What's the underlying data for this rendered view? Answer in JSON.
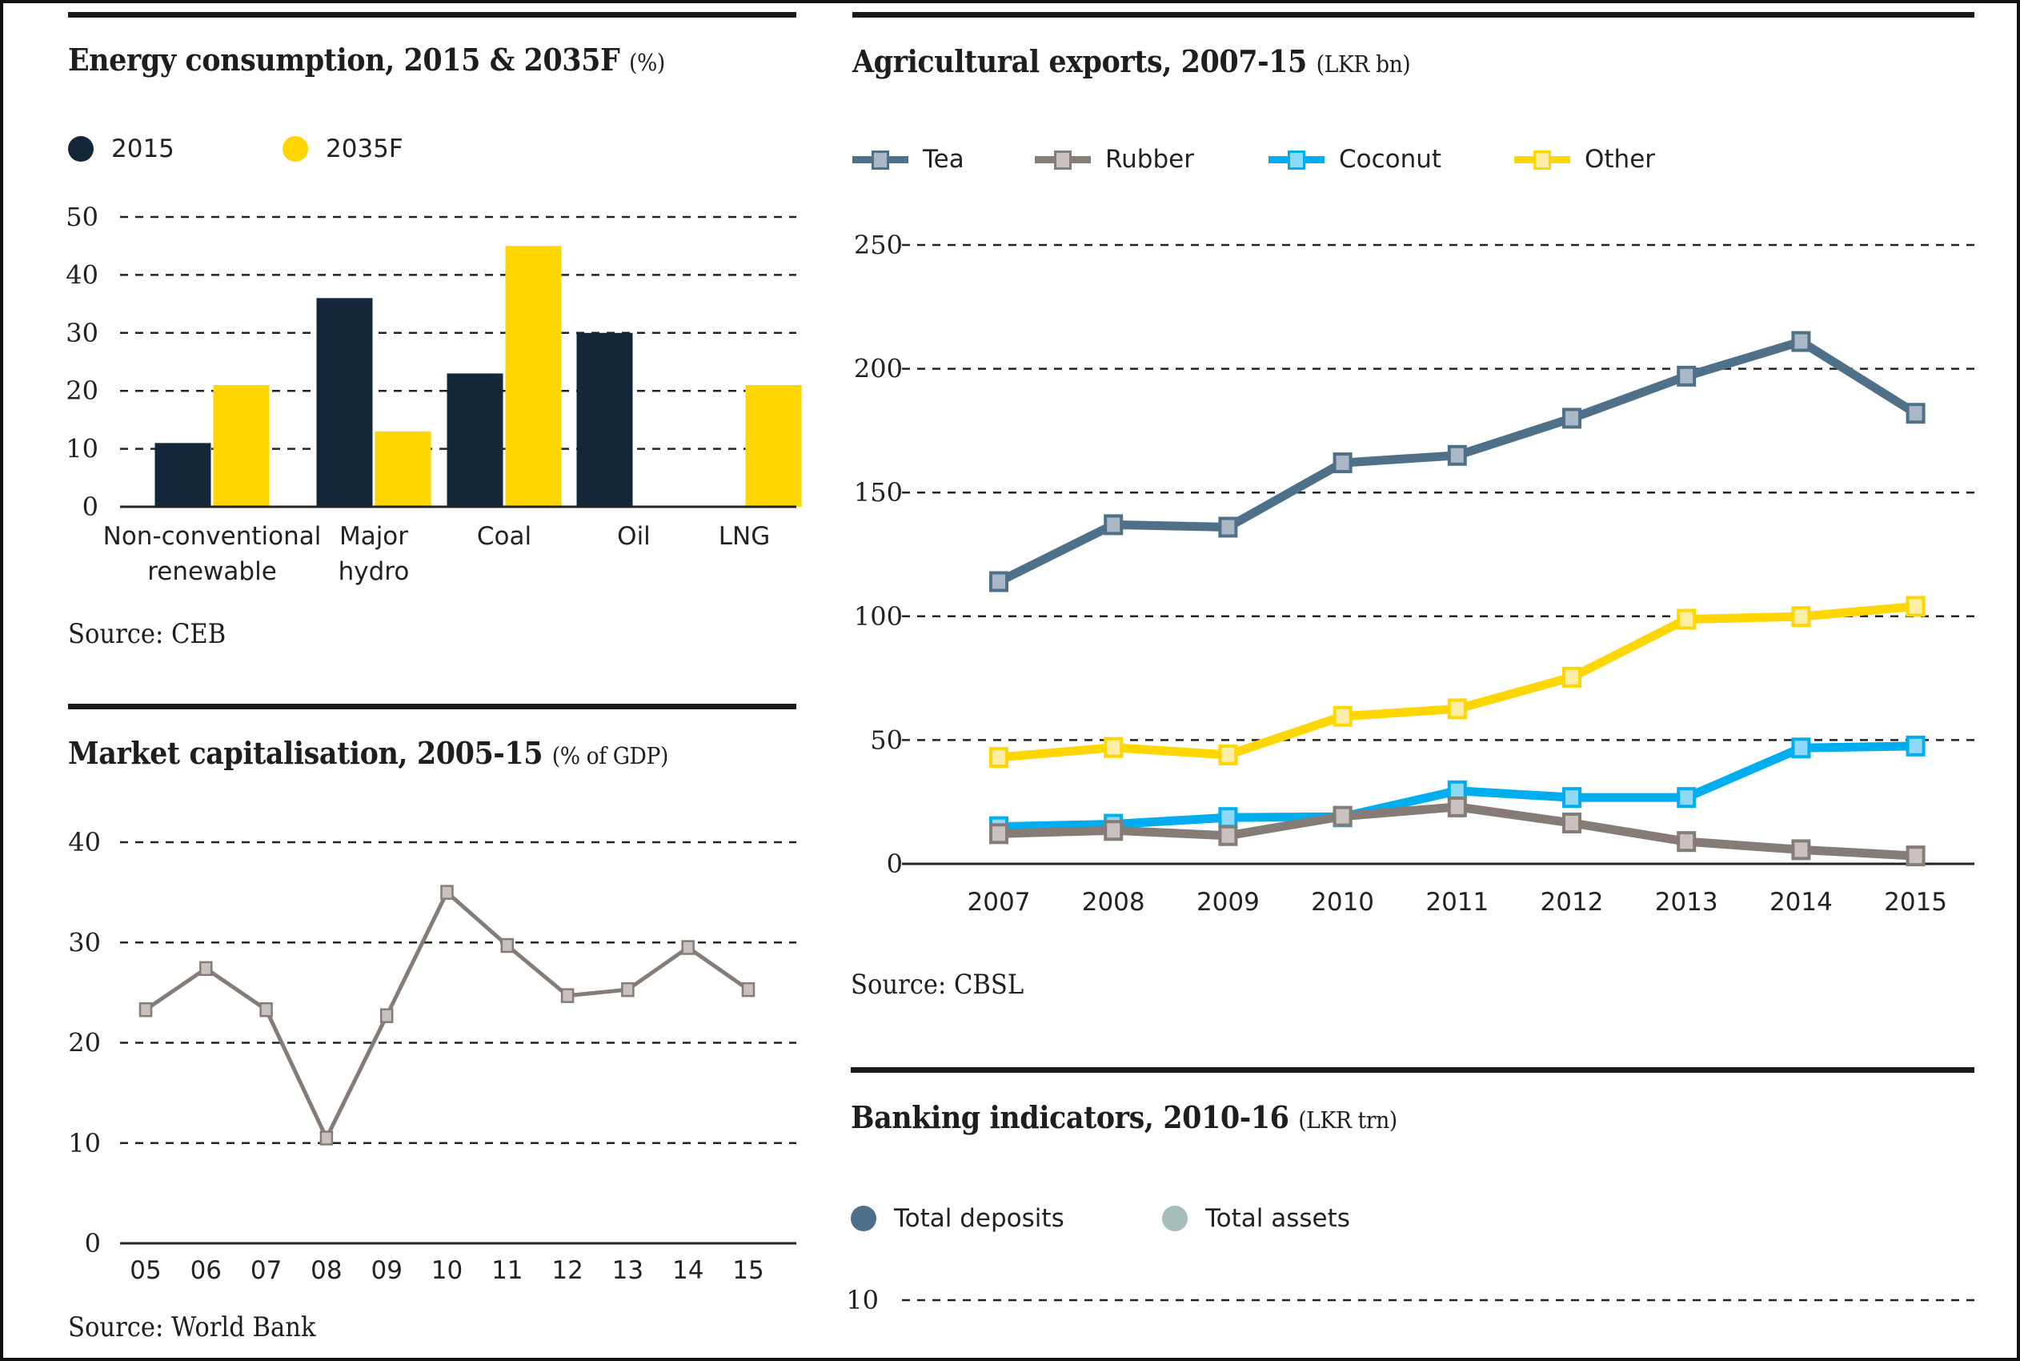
{
  "panels": {
    "energy": {
      "title": "Energy consumption, 2015 & 2035F",
      "unit": "(%)",
      "source": "Source: CEB",
      "legend": [
        {
          "label": "2015",
          "color": "#13263a"
        },
        {
          "label": "2035F",
          "color": "#ffd600"
        }
      ]
    },
    "market": {
      "title": "Market capitalisation, 2005-15",
      "unit": "(% of GDP)",
      "source": "Source: World Bank"
    },
    "agri": {
      "title": "Agricultural exports, 2007-15",
      "unit": "(LKR bn)",
      "source": "Source: CBSL",
      "legend": [
        {
          "label": "Tea",
          "color": "#4f7089",
          "fill": "#a9b7c7"
        },
        {
          "label": "Rubber",
          "color": "#857c78",
          "fill": "#c9c1be"
        },
        {
          "label": "Coconut",
          "color": "#00aeef",
          "fill": "#8dd9f6"
        },
        {
          "label": "Other",
          "color": "#ffd600",
          "fill": "#fdeea6"
        }
      ]
    },
    "banking": {
      "title": "Banking indicators, 2010-16",
      "unit": "(LKR trn)",
      "legend": [
        {
          "label": "Total deposits",
          "color": "#4d6f8a"
        },
        {
          "label": "Total assets",
          "color": "#a4bdba"
        }
      ],
      "ytick": "10"
    }
  },
  "chart_data": [
    {
      "type": "bar",
      "title": "Energy consumption, 2015 & 2035F (%)",
      "categories": [
        [
          "Non-conventional",
          "renewable"
        ],
        [
          "Major",
          "hydro"
        ],
        [
          "Coal"
        ],
        [
          "Oil"
        ],
        [
          "LNG"
        ]
      ],
      "series": [
        {
          "name": "2015",
          "values": [
            11,
            36,
            23,
            30,
            0
          ],
          "color": "#13263a"
        },
        {
          "name": "2035F",
          "values": [
            21,
            13,
            45,
            0,
            21
          ],
          "color": "#ffd600"
        }
      ],
      "yticks": [
        "0",
        "10",
        "20",
        "30",
        "40",
        "50"
      ],
      "ylim": [
        0,
        50
      ],
      "grid": true,
      "legend": "top-left",
      "xlabel": "",
      "ylabel": ""
    },
    {
      "type": "line",
      "title": "Market capitalisation, 2005-15 (% of GDP)",
      "x": [
        "05",
        "06",
        "07",
        "08",
        "09",
        "10",
        "11",
        "12",
        "13",
        "14",
        "15"
      ],
      "series": [
        {
          "name": "Market capitalisation",
          "values": [
            23.3,
            27.4,
            23.3,
            10.5,
            22.7,
            35.0,
            29.7,
            24.7,
            25.3,
            29.5,
            25.3
          ],
          "color": "#857c78",
          "fill": "#c9c1be"
        }
      ],
      "yticks": [
        "0",
        "10",
        "20",
        "30",
        "40"
      ],
      "ylim": [
        0,
        40
      ],
      "grid": true,
      "xlabel": "",
      "ylabel": ""
    },
    {
      "type": "line",
      "title": "Agricultural exports, 2007-15 (LKR bn)",
      "x": [
        "2007",
        "2008",
        "2009",
        "2010",
        "2011",
        "2012",
        "2013",
        "2014",
        "2015"
      ],
      "series": [
        {
          "name": "Tea",
          "values": [
            114,
            137,
            136,
            162,
            165,
            180,
            197,
            211,
            182
          ],
          "color": "#4f7089",
          "fill": "#a9b7c7"
        },
        {
          "name": "Other",
          "values": [
            43,
            47,
            44,
            59.6,
            62.6,
            75.4,
            98.8,
            99.9,
            104
          ],
          "color": "#ffd600",
          "fill": "#fdeea6"
        },
        {
          "name": "Coconut",
          "values": [
            15,
            16,
            18.7,
            19,
            29.5,
            26.8,
            26.8,
            46.8,
            47.6
          ],
          "color": "#00aeef",
          "fill": "#8dd9f6"
        },
        {
          "name": "Rubber",
          "values": [
            12.2,
            13.5,
            11.4,
            19.2,
            23,
            16.5,
            9,
            5.7,
            3.2
          ],
          "color": "#857c78",
          "fill": "#c9c1be"
        }
      ],
      "yticks": [
        "0",
        "50",
        "100",
        "150",
        "200",
        "250"
      ],
      "ylim": [
        0,
        250
      ],
      "grid": true,
      "legend": "top-left",
      "xlabel": "",
      "ylabel": ""
    },
    {
      "type": "bar",
      "title": "Banking indicators, 2010-16 (LKR trn)",
      "series": [
        {
          "name": "Total deposits",
          "values": [],
          "color": "#4d6f8a"
        },
        {
          "name": "Total assets",
          "values": [],
          "color": "#a4bdba"
        }
      ],
      "yticks": [
        "10"
      ],
      "grid": true,
      "legend": "top-left",
      "note": "chart cropped; only the 10 gridline is visible"
    }
  ]
}
